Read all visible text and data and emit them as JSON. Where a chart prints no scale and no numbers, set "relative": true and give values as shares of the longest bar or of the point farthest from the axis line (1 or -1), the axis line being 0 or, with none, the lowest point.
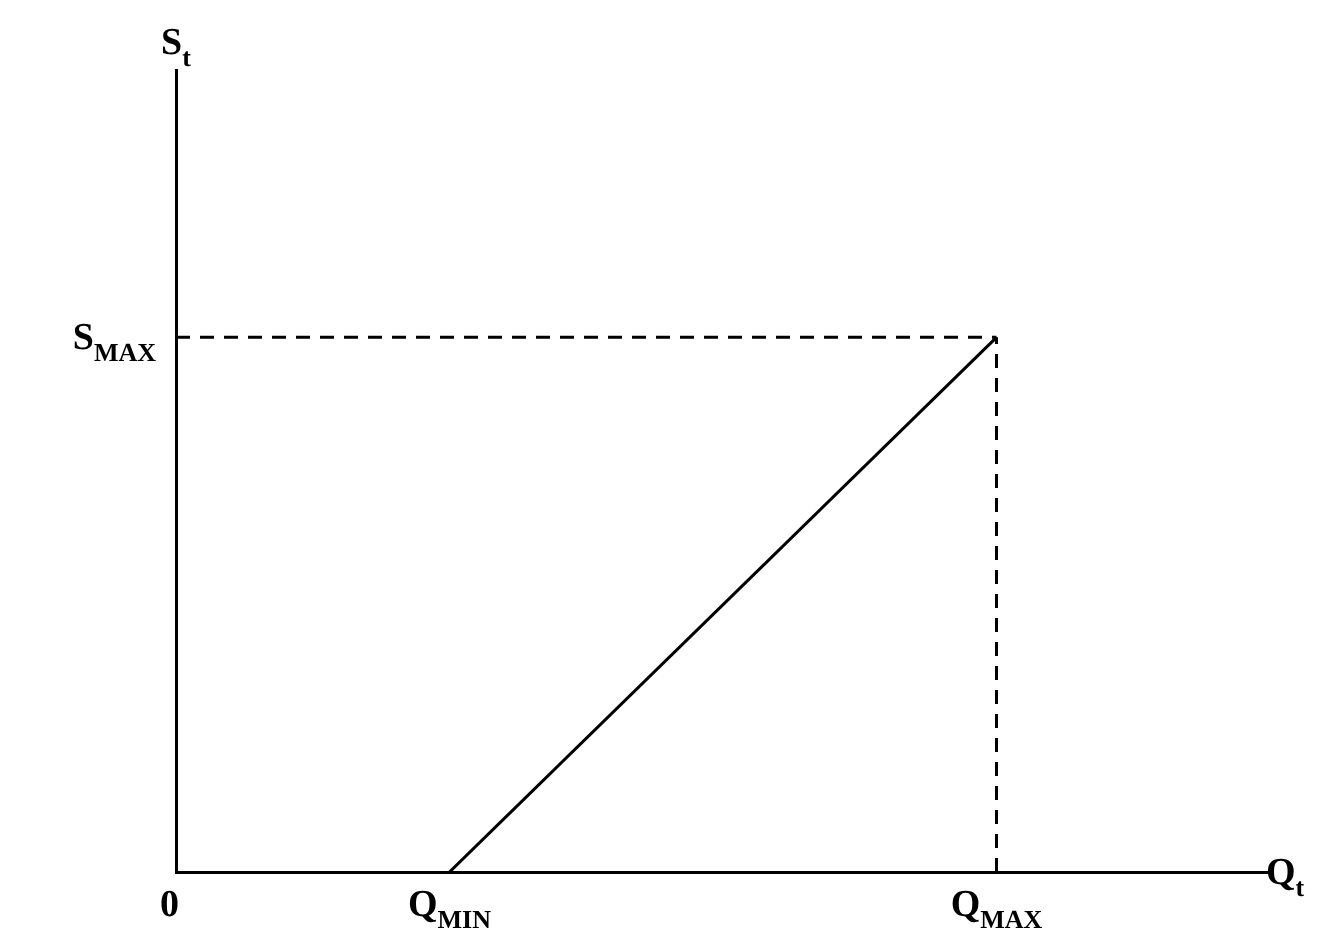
{
  "chart_data": {
    "type": "line",
    "xlabel": "Q$_{t}$",
    "annotations": [
      "S$_{t}$"
    ],
    "relative": true,
    "categories": [
      "0",
      null,
      "Q$_{MIN}$",
      null,
      null,
      null,
      "Q$_{MAX}$",
      null,
      null
    ],
    "grid": false,
    "legend": false,
    "marker": "none",
    "series": [
      {
        "color": "#000000",
        "x": [
          "Q$_{MIN}$",
          "Q$_{MAX}$"
        ],
        "values": [
          0,
          1
        ],
        "line_style": "solid"
      },
      {
        "name": "S$_{MAX}$",
        "color": "#000000",
        "x": [
          "0",
          "Q$_{MAX}$"
        ],
        "values": [
          1,
          1
        ],
        "line_style": "dashed"
      },
      {
        "color": "#000000",
        "x": [
          "Q$_{MAX}$",
          "Q$_{MAX}$"
        ],
        "values": [
          0,
          1
        ],
        "line_style": "dashed"
      }
    ]
  }
}
